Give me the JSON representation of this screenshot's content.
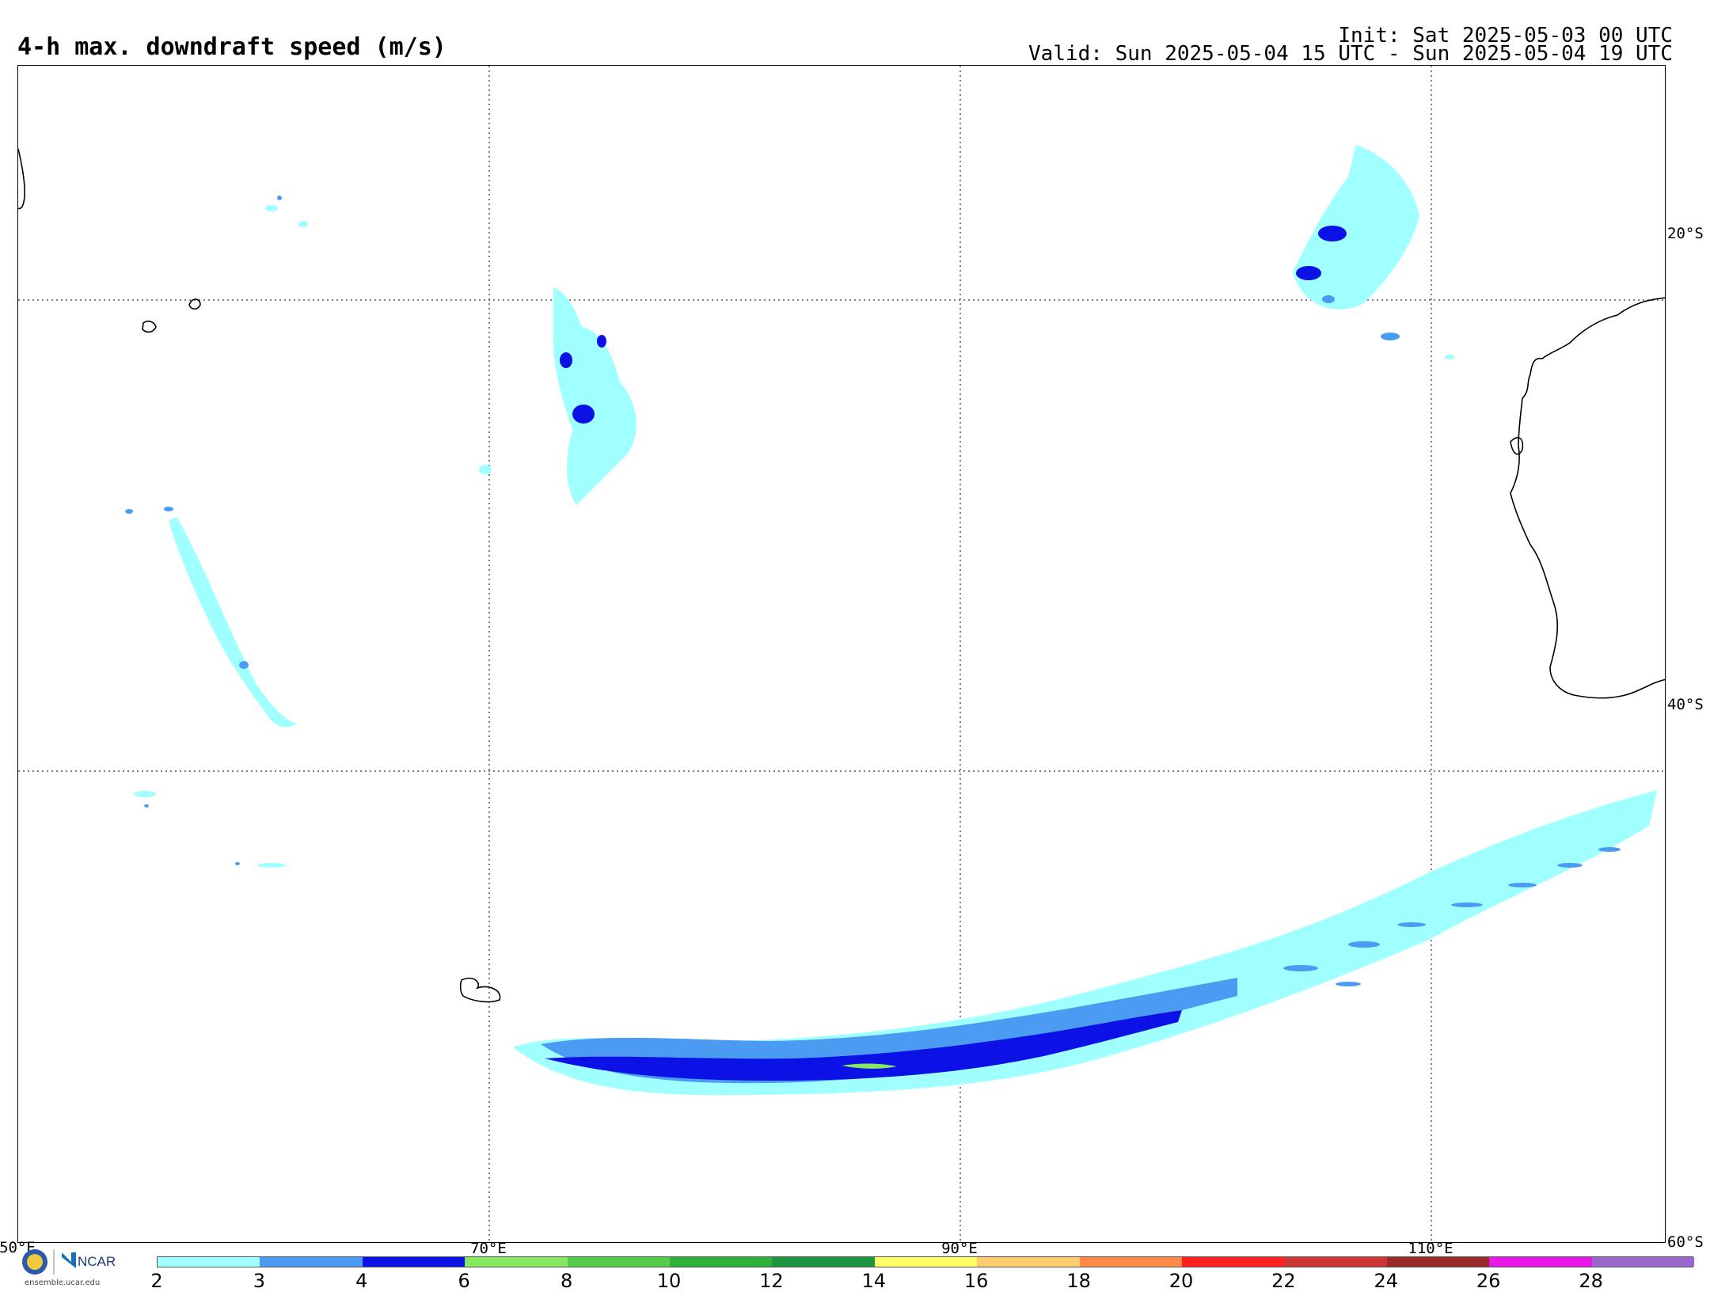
{
  "header": {
    "title": "4-h max. downdraft speed (m/s)",
    "init": "Init: Sat 2025-05-03 00 UTC",
    "valid": "Valid: Sun 2025-05-04 15 UTC - Sun 2025-05-04 19 UTC"
  },
  "map": {
    "lat_labels": [
      "20°S",
      "40°S",
      "60°S"
    ],
    "lon_labels": [
      "50°E",
      "70°E",
      "90°E",
      "110°E"
    ],
    "gridlines": true
  },
  "colorbar": {
    "ticks": [
      "2",
      "3",
      "4",
      "6",
      "8",
      "10",
      "12",
      "14",
      "16",
      "18",
      "20",
      "22",
      "24",
      "26",
      "28"
    ],
    "colors": [
      "#a0ffff",
      "#4b9bf2",
      "#0c12e6",
      "#86e860",
      "#55cc4a",
      "#2fb03a",
      "#1f9440",
      "#ffff66",
      "#ffcc70",
      "#ff8a4a",
      "#ff2020",
      "#cc3636",
      "#9a2a2a",
      "#e818e8",
      "#9966cc"
    ]
  },
  "logo": {
    "org": "NCAR",
    "url": "ensemble.ucar.edu"
  }
}
